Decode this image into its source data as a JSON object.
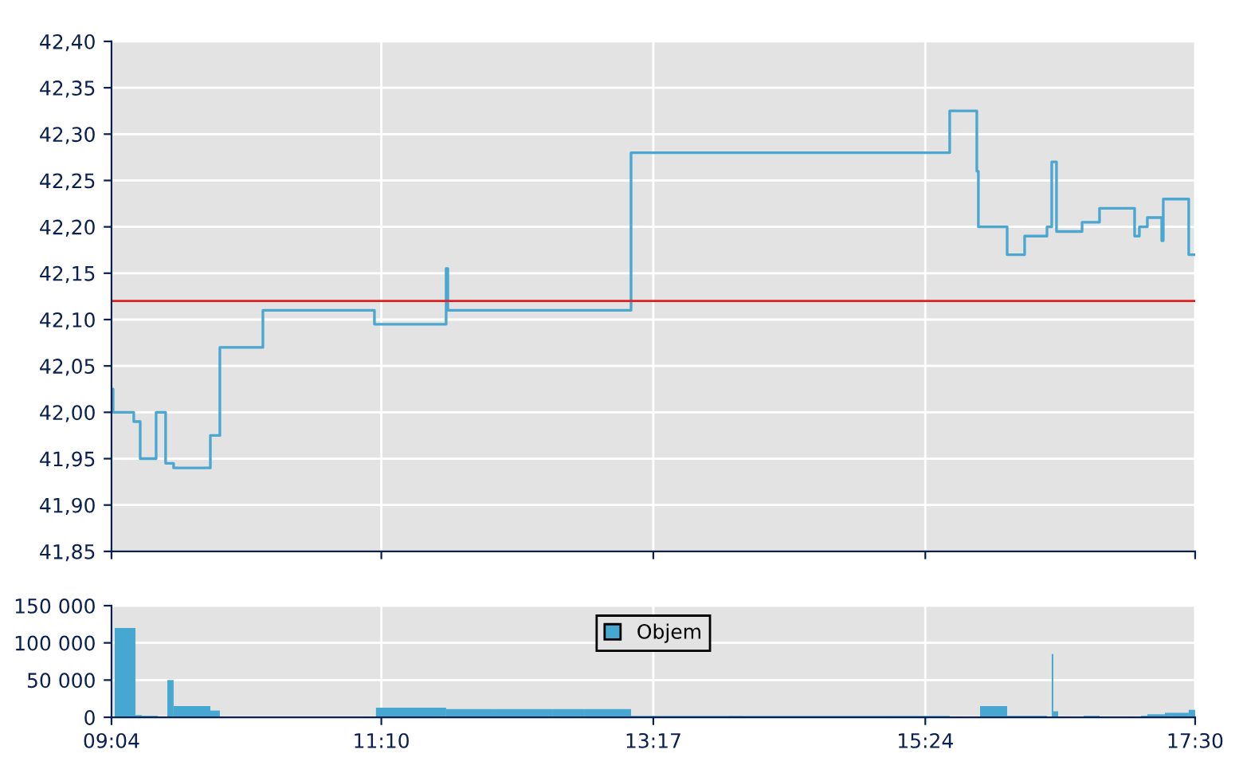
{
  "chart_data": [
    {
      "type": "step",
      "xlim": [
        9.0667,
        17.5
      ],
      "xticks": [
        {
          "value": 9.0667,
          "label": null
        },
        {
          "value": 11.1667,
          "label": null
        },
        {
          "value": 13.2833,
          "label": null
        },
        {
          "value": 15.4,
          "label": null
        },
        {
          "value": 17.5,
          "label": null
        }
      ],
      "tick_labels": "y",
      "ylim": [
        41.85,
        42.4
      ],
      "yticks": [
        {
          "value": 41.85,
          "label": "41,85"
        },
        {
          "value": 41.9,
          "label": "41,90"
        },
        {
          "value": 41.95,
          "label": "41,95"
        },
        {
          "value": 42.0,
          "label": "42,00"
        },
        {
          "value": 42.05,
          "label": "42,05"
        },
        {
          "value": 42.1,
          "label": "42,10"
        },
        {
          "value": 42.15,
          "label": "42,15"
        },
        {
          "value": 42.2,
          "label": "42,20"
        },
        {
          "value": 42.25,
          "label": "42,25"
        },
        {
          "value": 42.3,
          "label": "42,30"
        },
        {
          "value": 42.35,
          "label": "42,35"
        },
        {
          "value": 42.4,
          "label": "42,40"
        }
      ],
      "grid": true,
      "legend": false,
      "series": [
        {
          "color": "#4ba6d0",
          "x": [
            9.0667,
            9.079,
            9.24,
            9.29,
            9.414,
            9.488,
            9.55,
            9.836,
            9.91,
            10.245,
            11.113,
            11.671,
            11.684,
            13.11,
            15.59,
            15.801,
            15.813,
            16.037,
            16.173,
            16.347,
            16.384,
            16.421,
            16.62,
            16.756,
            17.029,
            17.066,
            17.128,
            17.24,
            17.252,
            17.45,
            17.5
          ],
          "values": [
            42.025,
            42.0,
            41.99,
            41.95,
            42.0,
            41.945,
            41.94,
            41.975,
            42.07,
            42.11,
            42.095,
            42.155,
            42.11,
            42.28,
            42.325,
            42.26,
            42.2,
            42.17,
            42.19,
            42.2,
            42.27,
            42.195,
            42.205,
            42.22,
            42.19,
            42.2,
            42.21,
            42.185,
            42.23,
            42.17,
            42.17
          ]
        }
      ],
      "ref_lines": [
        {
          "axis": "y",
          "value": 42.12,
          "color": "#e02020"
        }
      ]
    },
    {
      "type": "histogram",
      "xlim": [
        9.0667,
        17.5
      ],
      "xticks": [
        {
          "value": 9.0667,
          "label": "09:04"
        },
        {
          "value": 11.1667,
          "label": "11:10"
        },
        {
          "value": 13.2833,
          "label": "13:17"
        },
        {
          "value": 15.4,
          "label": "15:24"
        },
        {
          "value": 17.5,
          "label": "17:30"
        }
      ],
      "ylim": [
        0,
        150000
      ],
      "yticks": [
        {
          "value": 0,
          "label": "0"
        },
        {
          "value": 50000,
          "label": "50 000"
        },
        {
          "value": 100000,
          "label": "100 000"
        },
        {
          "value": 150000,
          "label": "150 000"
        }
      ],
      "grid": true,
      "legend": "top",
      "bins": [
        9.092,
        9.253,
        9.302,
        9.426,
        9.501,
        9.55,
        9.836,
        9.91,
        11.125,
        11.671,
        12.031,
        12.502,
        12.75,
        13.11,
        13.866,
        13.978,
        14.821,
        15.131,
        15.59,
        15.826,
        15.888,
        16.037,
        16.161,
        16.347,
        16.384,
        16.396,
        16.434,
        16.632,
        16.756,
        17.079,
        17.128,
        17.265,
        17.314,
        17.45,
        17.5
      ],
      "series": [
        {
          "name": "Objem",
          "color": "#46a7d1",
          "values": [
            120000,
            3000,
            2000,
            0,
            50000,
            15000,
            9000,
            0,
            13000,
            11000,
            11000,
            11000,
            11000,
            2000,
            2000,
            2000,
            2000,
            2000,
            0,
            15000,
            15000,
            2000,
            2000,
            0,
            85000,
            8000,
            0,
            2000,
            0,
            2000,
            4000,
            6000,
            6000,
            10000
          ]
        }
      ]
    }
  ]
}
